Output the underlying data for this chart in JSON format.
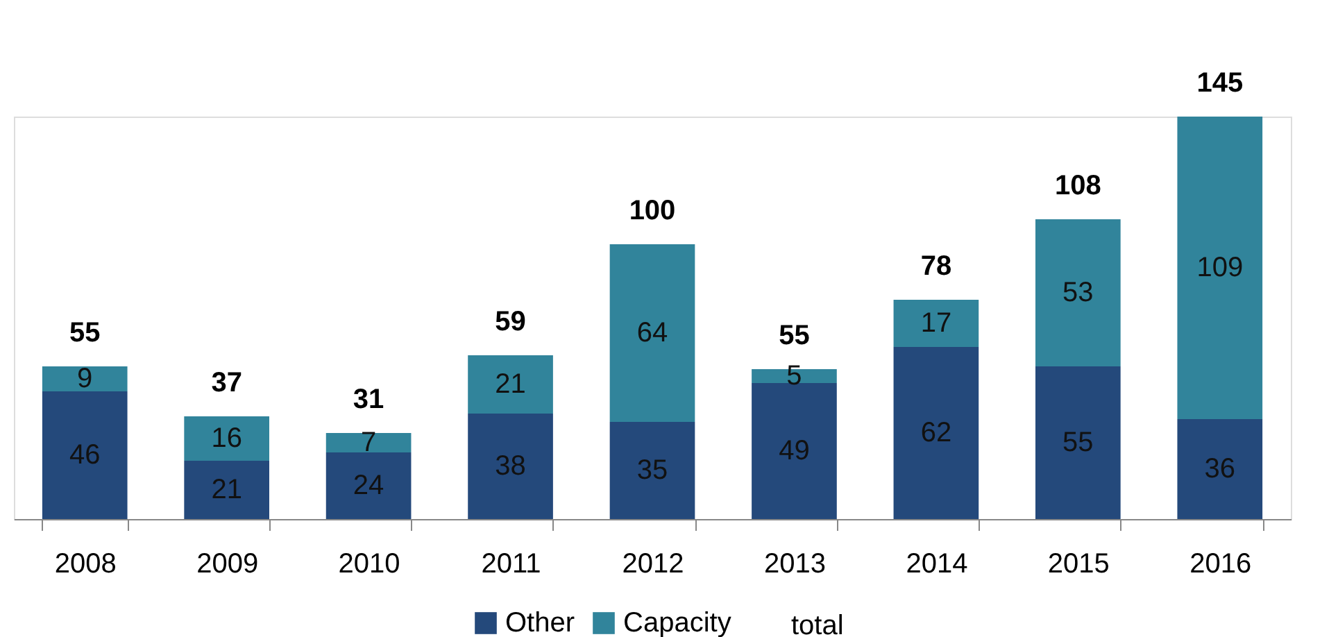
{
  "chart_data": {
    "type": "bar",
    "stacked": true,
    "categories": [
      "2008",
      "2009",
      "2010",
      "2011",
      "2012",
      "2013",
      "2014",
      "2015",
      "2016"
    ],
    "series": [
      {
        "name": "Other",
        "color": "#24497b",
        "values": [
          46,
          21,
          24,
          38,
          35,
          49,
          62,
          55,
          36
        ]
      },
      {
        "name": "Capacity",
        "color": "#31849b",
        "values": [
          9,
          16,
          7,
          21,
          64,
          5,
          17,
          53,
          109
        ]
      }
    ],
    "totals": [
      "55",
      "37",
      "31",
      "59",
      "100",
      "55",
      "78",
      "108",
      "145"
    ],
    "data_labels": true,
    "legend": "bottom",
    "grid": false,
    "tick_labels": "x",
    "annotations": [
      "total"
    ]
  }
}
